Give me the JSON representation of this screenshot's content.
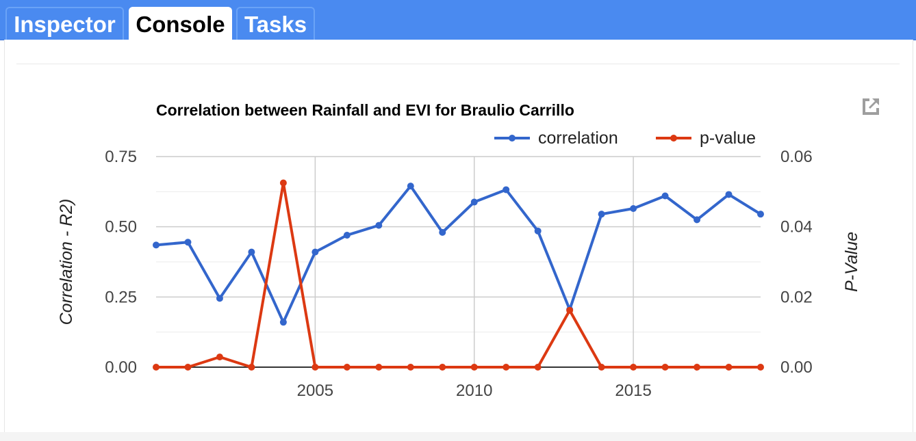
{
  "tabs": [
    {
      "label": "Inspector",
      "active": false
    },
    {
      "label": "Console",
      "active": true
    },
    {
      "label": "Tasks",
      "active": false
    }
  ],
  "popout_icon": "open-in-new-icon",
  "colors": {
    "correlation": "#3366cc",
    "p_value": "#dc3912",
    "tab_bar": "#4a8af0"
  },
  "chart_data": {
    "type": "line",
    "title": "Correlation between Rainfall and EVI for Braulio Carrillo",
    "legend_position": "top-right",
    "grid": true,
    "x": [
      2000,
      2001,
      2002,
      2003,
      2004,
      2005,
      2006,
      2007,
      2008,
      2009,
      2010,
      2011,
      2012,
      2013,
      2014,
      2015,
      2016,
      2017,
      2018,
      2019
    ],
    "x_ticks": [
      "2005",
      "2010",
      "2015"
    ],
    "xlim": [
      2000,
      2019
    ],
    "y_left": {
      "label": "Correlation - R2)",
      "ticks": [
        "0.75",
        "0.50",
        "0.25",
        "0.00"
      ],
      "ylim": [
        0,
        0.75
      ]
    },
    "y_right": {
      "label": "P-Value",
      "ticks": [
        "0.06",
        "0.04",
        "0.02",
        "0.00"
      ],
      "ylim": [
        0,
        0.06
      ]
    },
    "series": [
      {
        "name": "correlation",
        "axis": "left",
        "values": [
          0.435,
          0.445,
          0.245,
          0.41,
          0.16,
          0.41,
          0.47,
          0.505,
          0.645,
          0.48,
          0.588,
          0.632,
          0.485,
          0.205,
          0.545,
          0.565,
          0.61,
          0.525,
          0.615,
          0.545
        ]
      },
      {
        "name": "p-value",
        "axis": "right",
        "values": [
          0,
          0,
          0.0029,
          0,
          0.0525,
          0,
          0,
          0,
          0,
          0,
          0,
          0,
          0,
          0.0162,
          0,
          0,
          0,
          0,
          0,
          0
        ]
      }
    ]
  }
}
